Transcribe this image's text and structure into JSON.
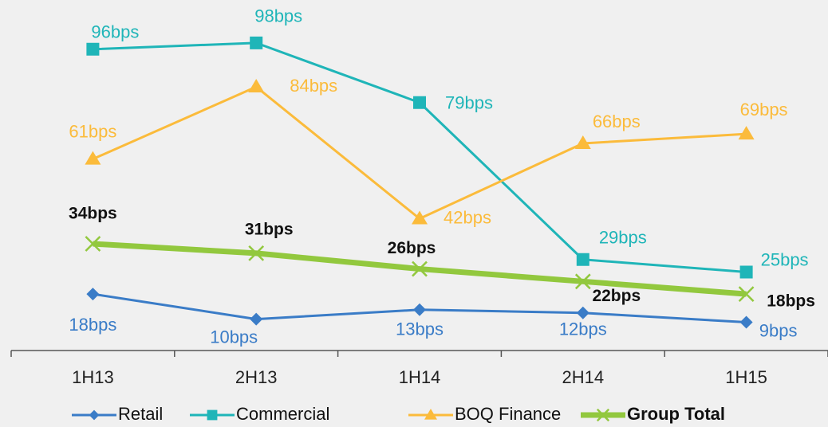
{
  "chart_data": {
    "type": "line",
    "categories": [
      "1H13",
      "2H13",
      "1H14",
      "2H14",
      "1H15"
    ],
    "ylim": [
      0,
      100
    ],
    "series": [
      {
        "name": "Retail",
        "color": "#3a7cc7",
        "values": [
          18,
          10,
          13,
          12,
          9
        ],
        "value_labels": [
          "18bps",
          "10bps",
          "13bps",
          "12bps",
          "9bps"
        ]
      },
      {
        "name": "Commercial",
        "color": "#1fb5b8",
        "values": [
          96,
          98,
          79,
          29,
          25
        ],
        "value_labels": [
          "96bps",
          "98bps",
          "79bps",
          "29bps",
          "25bps"
        ]
      },
      {
        "name": "BOQ Finance",
        "color": "#fbbb3b",
        "values": [
          61,
          84,
          42,
          66,
          69
        ],
        "value_labels": [
          "61bps",
          "84bps",
          "42bps",
          "66bps",
          "69bps"
        ]
      },
      {
        "name": "Group Total",
        "color": "#92c83e",
        "values": [
          34,
          31,
          26,
          22,
          18
        ],
        "value_labels": [
          "34bps",
          "31bps",
          "26bps",
          "22bps",
          "18bps"
        ]
      }
    ]
  }
}
